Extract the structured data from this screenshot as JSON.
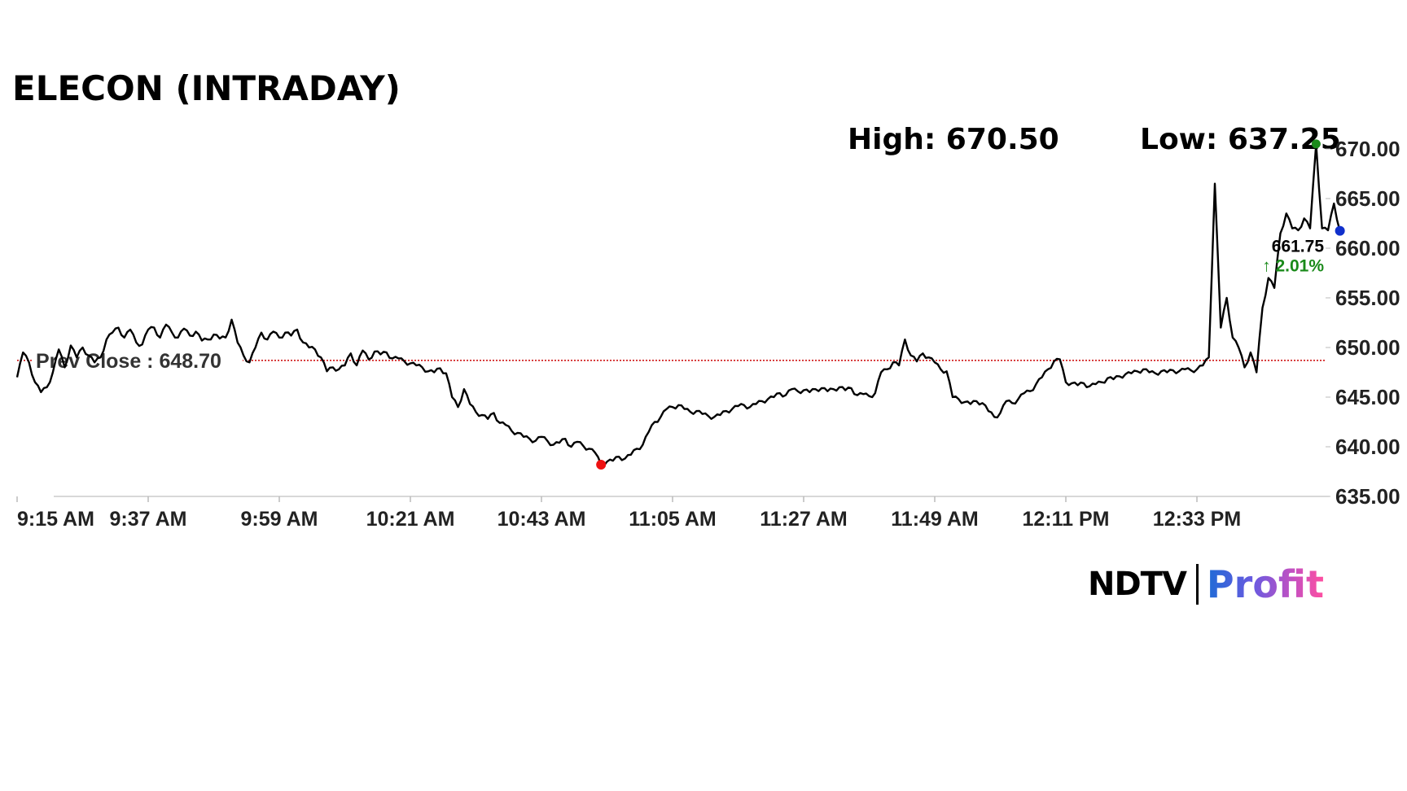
{
  "title": "ELECON (INTRADAY)",
  "high_label": "High: 670.50",
  "low_label": "Low: 637.25",
  "prev_close_label": "Prev Close : 648.70",
  "last_price": "661.75",
  "last_change": "↑ 2.01%",
  "logo": {
    "ndtv": "NDTV",
    "profit": "Profit"
  },
  "colors": {
    "line": "#000000",
    "prev_close": "#cc0000",
    "high_marker": "#1a8a1a",
    "low_marker": "#ee1111",
    "last_marker": "#1030cc",
    "change_up": "#1a8a1a"
  },
  "chart_data": {
    "type": "line",
    "title": "ELECON (INTRADAY)",
    "xlabel": "",
    "ylabel": "",
    "ylim": [
      635,
      670
    ],
    "yticks": [
      "670.00",
      "665.00",
      "660.00",
      "655.00",
      "650.00",
      "645.00",
      "640.00",
      "635.00"
    ],
    "xticks": [
      "9:15 AM",
      "9:37 AM",
      "9:59 AM",
      "10:21 AM",
      "10:43 AM",
      "11:05 AM",
      "11:27 AM",
      "11:49 AM",
      "12:11 PM",
      "12:33 PM"
    ],
    "prev_close": 648.7,
    "high": 670.5,
    "low": 637.25,
    "last": 661.75,
    "change_pct": 2.01,
    "grid": false,
    "series": [
      {
        "values": [
          {
            "t": "9:15",
            "v": 647.0
          },
          {
            "t": "9:16",
            "v": 649.5
          },
          {
            "t": "9:17",
            "v": 648.5
          },
          {
            "t": "9:18",
            "v": 646.5
          },
          {
            "t": "9:19",
            "v": 645.5
          },
          {
            "t": "9:20",
            "v": 646.0
          },
          {
            "t": "9:21",
            "v": 647.5
          },
          {
            "t": "9:22",
            "v": 649.8
          },
          {
            "t": "9:23",
            "v": 648.0
          },
          {
            "t": "9:24",
            "v": 650.2
          },
          {
            "t": "9:25",
            "v": 649.0
          },
          {
            "t": "9:26",
            "v": 650.0
          },
          {
            "t": "9:27",
            "v": 649.2
          },
          {
            "t": "9:28",
            "v": 648.5
          },
          {
            "t": "9:29",
            "v": 649.0
          },
          {
            "t": "9:30",
            "v": 650.8
          },
          {
            "t": "9:31",
            "v": 651.5
          },
          {
            "t": "9:32",
            "v": 652.0
          },
          {
            "t": "9:33",
            "v": 651.0
          },
          {
            "t": "9:34",
            "v": 651.8
          },
          {
            "t": "9:35",
            "v": 650.5
          },
          {
            "t": "9:36",
            "v": 650.3
          },
          {
            "t": "9:37",
            "v": 651.8
          },
          {
            "t": "9:38",
            "v": 652.0
          },
          {
            "t": "9:39",
            "v": 651.0
          },
          {
            "t": "9:40",
            "v": 652.3
          },
          {
            "t": "9:41",
            "v": 651.5
          },
          {
            "t": "9:42",
            "v": 651.0
          },
          {
            "t": "9:43",
            "v": 651.9
          },
          {
            "t": "9:44",
            "v": 651.2
          },
          {
            "t": "9:45",
            "v": 651.6
          },
          {
            "t": "9:46",
            "v": 650.7
          },
          {
            "t": "9:47",
            "v": 650.8
          },
          {
            "t": "9:48",
            "v": 651.3
          },
          {
            "t": "9:49",
            "v": 650.9
          },
          {
            "t": "9:50",
            "v": 651.0
          },
          {
            "t": "9:51",
            "v": 652.8
          },
          {
            "t": "9:52",
            "v": 650.5
          },
          {
            "t": "9:53",
            "v": 649.2
          },
          {
            "t": "9:54",
            "v": 648.5
          },
          {
            "t": "9:55",
            "v": 650.0
          },
          {
            "t": "9:56",
            "v": 651.5
          },
          {
            "t": "9:57",
            "v": 650.8
          },
          {
            "t": "9:58",
            "v": 651.6
          },
          {
            "t": "9:59",
            "v": 651.0
          },
          {
            "t": "10:00",
            "v": 651.5
          },
          {
            "t": "10:01",
            "v": 651.2
          },
          {
            "t": "10:02",
            "v": 651.8
          },
          {
            "t": "10:03",
            "v": 650.5
          },
          {
            "t": "10:04",
            "v": 650.0
          },
          {
            "t": "10:05",
            "v": 649.8
          },
          {
            "t": "10:06",
            "v": 649.0
          },
          {
            "t": "10:07",
            "v": 647.6
          },
          {
            "t": "10:08",
            "v": 648.0
          },
          {
            "t": "10:09",
            "v": 647.8
          },
          {
            "t": "10:10",
            "v": 648.2
          },
          {
            "t": "10:11",
            "v": 649.4
          },
          {
            "t": "10:12",
            "v": 648.2
          },
          {
            "t": "10:13",
            "v": 649.7
          },
          {
            "t": "10:14",
            "v": 648.8
          },
          {
            "t": "10:15",
            "v": 649.6
          },
          {
            "t": "10:16",
            "v": 649.3
          },
          {
            "t": "10:17",
            "v": 649.5
          },
          {
            "t": "10:18",
            "v": 648.9
          },
          {
            "t": "10:19",
            "v": 648.9
          },
          {
            "t": "10:20",
            "v": 648.6
          },
          {
            "t": "10:21",
            "v": 648.4
          },
          {
            "t": "10:22",
            "v": 648.2
          },
          {
            "t": "10:23",
            "v": 648.0
          },
          {
            "t": "10:24",
            "v": 647.6
          },
          {
            "t": "10:25",
            "v": 647.5
          },
          {
            "t": "10:26",
            "v": 647.9
          },
          {
            "t": "10:27",
            "v": 647.4
          },
          {
            "t": "10:28",
            "v": 645.0
          },
          {
            "t": "10:29",
            "v": 644.0
          },
          {
            "t": "10:30",
            "v": 645.8
          },
          {
            "t": "10:31",
            "v": 644.3
          },
          {
            "t": "10:32",
            "v": 643.5
          },
          {
            "t": "10:33",
            "v": 643.2
          },
          {
            "t": "10:34",
            "v": 642.8
          },
          {
            "t": "10:35",
            "v": 643.4
          },
          {
            "t": "10:36",
            "v": 642.4
          },
          {
            "t": "10:37",
            "v": 642.2
          },
          {
            "t": "10:38",
            "v": 641.6
          },
          {
            "t": "10:39",
            "v": 641.4
          },
          {
            "t": "10:40",
            "v": 641.0
          },
          {
            "t": "10:41",
            "v": 640.8
          },
          {
            "t": "10:42",
            "v": 640.6
          },
          {
            "t": "10:43",
            "v": 641.0
          },
          {
            "t": "10:44",
            "v": 640.6
          },
          {
            "t": "10:45",
            "v": 640.2
          },
          {
            "t": "10:46",
            "v": 640.4
          },
          {
            "t": "10:47",
            "v": 640.8
          },
          {
            "t": "10:48",
            "v": 640.0
          },
          {
            "t": "10:49",
            "v": 640.5
          },
          {
            "t": "10:50",
            "v": 640.1
          },
          {
            "t": "10:51",
            "v": 639.8
          },
          {
            "t": "10:52",
            "v": 639.4
          },
          {
            "t": "10:53",
            "v": 638.2
          },
          {
            "t": "10:54",
            "v": 638.5
          },
          {
            "t": "10:55",
            "v": 638.6
          },
          {
            "t": "10:56",
            "v": 639.0
          },
          {
            "t": "10:57",
            "v": 638.8
          },
          {
            "t": "10:58",
            "v": 639.2
          },
          {
            "t": "10:59",
            "v": 639.8
          },
          {
            "t": "11:00",
            "v": 640.2
          },
          {
            "t": "11:01",
            "v": 641.5
          },
          {
            "t": "11:02",
            "v": 642.5
          },
          {
            "t": "11:03",
            "v": 643.0
          },
          {
            "t": "11:04",
            "v": 643.8
          },
          {
            "t": "11:05",
            "v": 644.0
          },
          {
            "t": "11:06",
            "v": 644.2
          },
          {
            "t": "11:07",
            "v": 643.8
          },
          {
            "t": "11:08",
            "v": 643.5
          },
          {
            "t": "11:09",
            "v": 643.6
          },
          {
            "t": "11:10",
            "v": 643.3
          },
          {
            "t": "11:11",
            "v": 643.1
          },
          {
            "t": "11:12",
            "v": 643.0
          },
          {
            "t": "11:13",
            "v": 643.2
          },
          {
            "t": "11:14",
            "v": 643.6
          },
          {
            "t": "11:15",
            "v": 643.8
          },
          {
            "t": "11:16",
            "v": 644.1
          },
          {
            "t": "11:17",
            "v": 644.2
          },
          {
            "t": "11:18",
            "v": 644.0
          },
          {
            "t": "11:19",
            "v": 644.3
          },
          {
            "t": "11:20",
            "v": 644.6
          },
          {
            "t": "11:21",
            "v": 644.8
          },
          {
            "t": "11:22",
            "v": 645.0
          },
          {
            "t": "11:23",
            "v": 645.4
          },
          {
            "t": "11:24",
            "v": 645.2
          },
          {
            "t": "11:25",
            "v": 645.8
          },
          {
            "t": "11:26",
            "v": 645.6
          },
          {
            "t": "11:27",
            "v": 645.7
          },
          {
            "t": "11:28",
            "v": 645.5
          },
          {
            "t": "11:29",
            "v": 645.8
          },
          {
            "t": "11:30",
            "v": 645.9
          },
          {
            "t": "11:31",
            "v": 645.6
          },
          {
            "t": "11:32",
            "v": 645.8
          },
          {
            "t": "11:33",
            "v": 646.0
          },
          {
            "t": "11:34",
            "v": 645.7
          },
          {
            "t": "11:35",
            "v": 645.9
          },
          {
            "t": "11:36",
            "v": 645.2
          },
          {
            "t": "11:37",
            "v": 645.3
          },
          {
            "t": "11:38",
            "v": 645.1
          },
          {
            "t": "11:39",
            "v": 645.4
          },
          {
            "t": "11:40",
            "v": 647.5
          },
          {
            "t": "11:41",
            "v": 647.8
          },
          {
            "t": "11:42",
            "v": 648.5
          },
          {
            "t": "11:43",
            "v": 648.2
          },
          {
            "t": "11:44",
            "v": 650.8
          },
          {
            "t": "11:45",
            "v": 649.2
          },
          {
            "t": "11:46",
            "v": 648.6
          },
          {
            "t": "11:47",
            "v": 649.4
          },
          {
            "t": "11:48",
            "v": 649.0
          },
          {
            "t": "11:49",
            "v": 648.5
          },
          {
            "t": "11:50",
            "v": 647.8
          },
          {
            "t": "11:51",
            "v": 647.6
          },
          {
            "t": "11:52",
            "v": 645.0
          },
          {
            "t": "11:53",
            "v": 644.8
          },
          {
            "t": "11:54",
            "v": 644.5
          },
          {
            "t": "11:55",
            "v": 644.3
          },
          {
            "t": "11:56",
            "v": 644.6
          },
          {
            "t": "11:57",
            "v": 644.4
          },
          {
            "t": "11:58",
            "v": 643.6
          },
          {
            "t": "11:59",
            "v": 643.0
          },
          {
            "t": "12:00",
            "v": 643.4
          },
          {
            "t": "12:01",
            "v": 644.6
          },
          {
            "t": "12:02",
            "v": 644.4
          },
          {
            "t": "12:03",
            "v": 644.8
          },
          {
            "t": "12:04",
            "v": 645.4
          },
          {
            "t": "12:05",
            "v": 645.6
          },
          {
            "t": "12:06",
            "v": 646.3
          },
          {
            "t": "12:07",
            "v": 647.0
          },
          {
            "t": "12:08",
            "v": 647.8
          },
          {
            "t": "12:09",
            "v": 648.6
          },
          {
            "t": "12:10",
            "v": 648.8
          },
          {
            "t": "12:11",
            "v": 646.5
          },
          {
            "t": "12:12",
            "v": 646.4
          },
          {
            "t": "12:13",
            "v": 646.2
          },
          {
            "t": "12:14",
            "v": 646.4
          },
          {
            "t": "12:15",
            "v": 646.1
          },
          {
            "t": "12:16",
            "v": 646.3
          },
          {
            "t": "12:17",
            "v": 646.5
          },
          {
            "t": "12:18",
            "v": 646.9
          },
          {
            "t": "12:19",
            "v": 646.8
          },
          {
            "t": "12:20",
            "v": 647.1
          },
          {
            "t": "12:21",
            "v": 647.3
          },
          {
            "t": "12:22",
            "v": 647.4
          },
          {
            "t": "12:23",
            "v": 647.6
          },
          {
            "t": "12:24",
            "v": 647.8
          },
          {
            "t": "12:25",
            "v": 647.5
          },
          {
            "t": "12:26",
            "v": 647.4
          },
          {
            "t": "12:27",
            "v": 647.6
          },
          {
            "t": "12:28",
            "v": 647.5
          },
          {
            "t": "12:29",
            "v": 647.7
          },
          {
            "t": "12:30",
            "v": 647.6
          },
          {
            "t": "12:31",
            "v": 647.8
          },
          {
            "t": "12:32",
            "v": 647.7
          },
          {
            "t": "12:33",
            "v": 647.8
          },
          {
            "t": "12:34",
            "v": 648.2
          },
          {
            "t": "12:35",
            "v": 649.0
          },
          {
            "t": "12:36",
            "v": 666.5
          },
          {
            "t": "12:37",
            "v": 652.0
          },
          {
            "t": "12:38",
            "v": 655.0
          },
          {
            "t": "12:39",
            "v": 651.0
          },
          {
            "t": "12:40",
            "v": 650.0
          },
          {
            "t": "12:41",
            "v": 648.0
          },
          {
            "t": "12:42",
            "v": 649.5
          },
          {
            "t": "12:43",
            "v": 647.5
          },
          {
            "t": "12:44",
            "v": 654.0
          },
          {
            "t": "12:45",
            "v": 657.0
          },
          {
            "t": "12:46",
            "v": 656.0
          },
          {
            "t": "12:47",
            "v": 661.5
          },
          {
            "t": "12:48",
            "v": 663.5
          },
          {
            "t": "12:49",
            "v": 662.0
          },
          {
            "t": "12:50",
            "v": 661.8
          },
          {
            "t": "12:51",
            "v": 663.0
          },
          {
            "t": "12:52",
            "v": 662.0
          },
          {
            "t": "12:53",
            "v": 670.5
          },
          {
            "t": "12:54",
            "v": 662.0
          },
          {
            "t": "12:55",
            "v": 661.8
          },
          {
            "t": "12:56",
            "v": 664.5
          },
          {
            "t": "12:57",
            "v": 661.75
          }
        ]
      }
    ]
  }
}
